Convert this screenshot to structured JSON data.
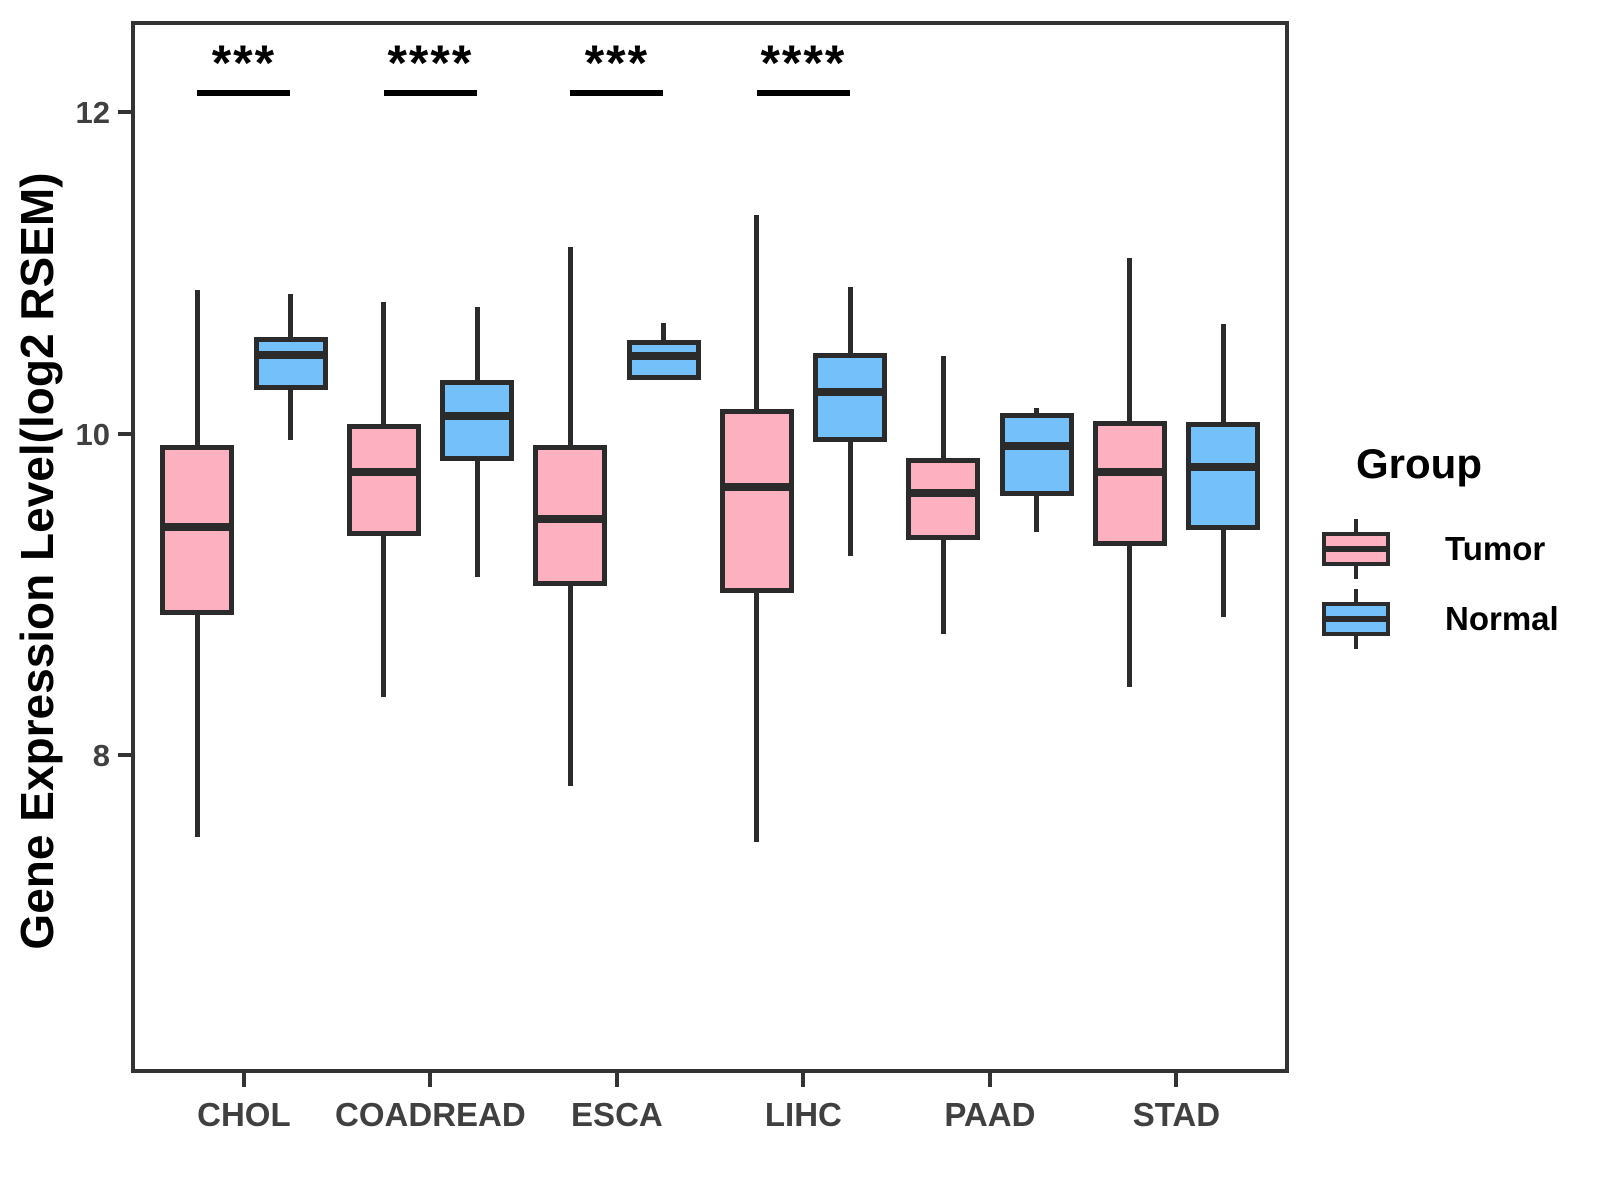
{
  "y_axis": {
    "label": "Gene Expression Level(log2 RSEM)",
    "ticks": [
      "12",
      "10",
      "8"
    ],
    "tick_values": [
      12,
      10,
      8
    ]
  },
  "x_axis": {
    "categories": [
      "CHOL",
      "COADREAD",
      "ESCA",
      "LIHC",
      "PAAD",
      "STAD"
    ]
  },
  "legend": {
    "title": "Group",
    "items": [
      {
        "label": "Tumor",
        "color": "#FCB0C0"
      },
      {
        "label": "Normal",
        "color": "#74C0FA"
      }
    ]
  },
  "colors": {
    "tumor_fill": "#FCB0C0",
    "normal_fill": "#74C0FA",
    "box_border": "#2b2b2b",
    "panel_border": "#333333",
    "tick_text": "#404040",
    "annotation": "#000000"
  },
  "chart_data": {
    "type": "boxplot",
    "title": "",
    "ylabel": "Gene Expression Level(log2 RSEM)",
    "xlabel": "",
    "ylim": [
      6.0,
      12.56
    ],
    "ytick_values": [
      8,
      10,
      12
    ],
    "grid": false,
    "legend_position": "right",
    "categories": [
      "CHOL",
      "COADREAD",
      "ESCA",
      "LIHC",
      "PAAD",
      "STAD"
    ],
    "series": [
      {
        "name": "Tumor",
        "color": "#FCB0C0",
        "boxes": [
          {
            "category": "CHOL",
            "min": 7.49,
            "q1": 8.87,
            "median": 9.42,
            "q3": 9.93,
            "max": 10.89
          },
          {
            "category": "COADREAD",
            "min": 8.36,
            "q1": 9.36,
            "median": 9.76,
            "q3": 10.06,
            "max": 10.82
          },
          {
            "category": "ESCA",
            "min": 7.81,
            "q1": 9.05,
            "median": 9.47,
            "q3": 9.93,
            "max": 11.16
          },
          {
            "category": "LIHC",
            "min": 7.46,
            "q1": 9.01,
            "median": 9.67,
            "q3": 10.15,
            "max": 11.36
          },
          {
            "category": "PAAD",
            "min": 8.75,
            "q1": 9.34,
            "median": 9.63,
            "q3": 9.85,
            "max": 10.48
          },
          {
            "category": "STAD",
            "min": 8.42,
            "q1": 9.3,
            "median": 9.76,
            "q3": 10.08,
            "max": 11.09
          }
        ]
      },
      {
        "name": "Normal",
        "color": "#74C0FA",
        "boxes": [
          {
            "category": "CHOL",
            "min": 9.96,
            "q1": 10.27,
            "median": 10.49,
            "q3": 10.6,
            "max": 10.87
          },
          {
            "category": "COADREAD",
            "min": 9.11,
            "q1": 9.83,
            "median": 10.11,
            "q3": 10.33,
            "max": 10.79
          },
          {
            "category": "ESCA",
            "min": 10.33,
            "q1": 10.33,
            "median": 10.48,
            "q3": 10.58,
            "max": 10.69
          },
          {
            "category": "LIHC",
            "min": 9.24,
            "q1": 9.95,
            "median": 10.26,
            "q3": 10.5,
            "max": 10.91
          },
          {
            "category": "PAAD",
            "min": 9.39,
            "q1": 9.61,
            "median": 9.92,
            "q3": 10.13,
            "max": 10.16
          },
          {
            "category": "STAD",
            "min": 8.86,
            "q1": 9.4,
            "median": 9.79,
            "q3": 10.07,
            "max": 10.68
          }
        ]
      }
    ],
    "significance": [
      {
        "category": "CHOL",
        "label": "***"
      },
      {
        "category": "COADREAD",
        "label": "****"
      },
      {
        "category": "ESCA",
        "label": "***"
      },
      {
        "category": "LIHC",
        "label": "****"
      }
    ]
  }
}
